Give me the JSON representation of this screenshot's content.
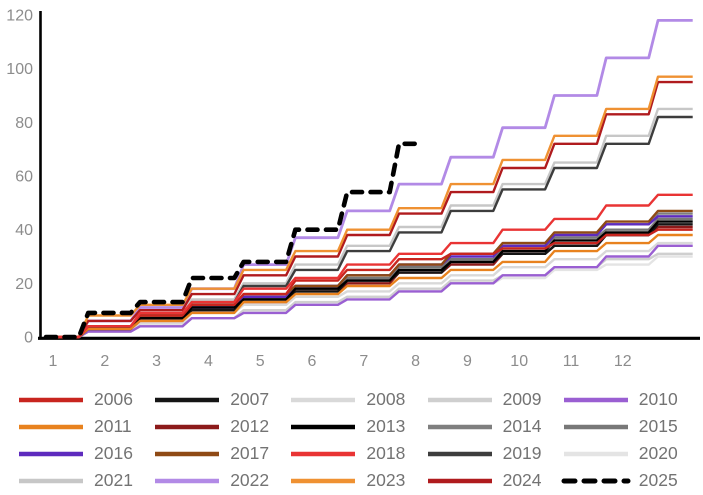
{
  "chart_data": {
    "type": "line",
    "subtype": "cumulative-step-by-month",
    "title": "",
    "xlabel": "",
    "ylabel": "",
    "x_tick_labels": [
      "1",
      "2",
      "3",
      "4",
      "5",
      "6",
      "7",
      "8",
      "9",
      "10",
      "11",
      "12"
    ],
    "y_ticks": [
      0,
      20,
      40,
      60,
      80,
      100,
      120
    ],
    "ylim": [
      0,
      120
    ],
    "xlim_months": [
      1,
      13.4
    ],
    "grid": "off",
    "legend_position": "bottom",
    "axis_color": "#000000",
    "tick_label_color": "#8c8c8c",
    "series": [
      {
        "name": "2006",
        "color": "#c8251f",
        "dash": false,
        "monthly_cumulative": [
          4,
          8,
          12,
          16,
          21,
          25,
          29,
          31,
          33,
          35,
          38,
          40
        ]
      },
      {
        "name": "2007",
        "color": "#151515",
        "dash": false,
        "monthly_cumulative": [
          3,
          7,
          10,
          14,
          17,
          21,
          24,
          28,
          31,
          34,
          38,
          42
        ]
      },
      {
        "name": "2008",
        "color": "#d9d9d9",
        "dash": false,
        "monthly_cumulative": [
          2,
          5,
          9,
          12,
          15,
          17,
          20,
          23,
          26,
          29,
          32,
          35
        ]
      },
      {
        "name": "2009",
        "color": "#cfcfcf",
        "dash": false,
        "monthly_cumulative": [
          2,
          4,
          7,
          10,
          13,
          15,
          18,
          21,
          23,
          26,
          29,
          31
        ]
      },
      {
        "name": "2010",
        "color": "#9a5fd2",
        "dash": false,
        "monthly_cumulative": [
          2,
          4,
          7,
          9,
          12,
          14,
          17,
          20,
          23,
          26,
          30,
          34
        ]
      },
      {
        "name": "2011",
        "color": "#e8821e",
        "dash": false,
        "monthly_cumulative": [
          3,
          6,
          9,
          13,
          16,
          19,
          22,
          25,
          28,
          32,
          35,
          38
        ]
      },
      {
        "name": "2012",
        "color": "#8c1a1a",
        "dash": false,
        "monthly_cumulative": [
          3,
          6,
          10,
          13,
          17,
          20,
          24,
          27,
          31,
          34,
          38,
          41
        ]
      },
      {
        "name": "2013",
        "color": "#000000",
        "dash": false,
        "monthly_cumulative": [
          3,
          7,
          11,
          14,
          18,
          21,
          25,
          28,
          32,
          36,
          39,
          43
        ]
      },
      {
        "name": "2014",
        "color": "#7f7f7f",
        "dash": false,
        "monthly_cumulative": [
          4,
          8,
          11,
          15,
          19,
          23,
          27,
          31,
          35,
          38,
          42,
          46
        ]
      },
      {
        "name": "2015",
        "color": "#787878",
        "dash": false,
        "monthly_cumulative": [
          3,
          7,
          11,
          14,
          18,
          22,
          26,
          29,
          33,
          37,
          40,
          44
        ]
      },
      {
        "name": "2016",
        "color": "#5e2bbe",
        "dash": false,
        "monthly_cumulative": [
          3,
          7,
          11,
          15,
          19,
          23,
          27,
          30,
          34,
          38,
          42,
          45
        ]
      },
      {
        "name": "2017",
        "color": "#8f4a15",
        "dash": false,
        "monthly_cumulative": [
          4,
          8,
          12,
          16,
          19,
          23,
          27,
          31,
          35,
          39,
          43,
          47
        ]
      },
      {
        "name": "2018",
        "color": "#e93434",
        "dash": false,
        "monthly_cumulative": [
          4,
          9,
          13,
          18,
          22,
          27,
          31,
          35,
          40,
          44,
          49,
          53
        ]
      },
      {
        "name": "2019",
        "color": "#3d3d3d",
        "dash": false,
        "monthly_cumulative": [
          4,
          8,
          13,
          19,
          25,
          32,
          39,
          47,
          55,
          63,
          72,
          82
        ]
      },
      {
        "name": "2020",
        "color": "#e4e4e4",
        "dash": false,
        "monthly_cumulative": [
          2,
          4,
          7,
          9,
          12,
          15,
          17,
          20,
          22,
          25,
          27,
          30
        ]
      },
      {
        "name": "2021",
        "color": "#c7c7c7",
        "dash": false,
        "monthly_cumulative": [
          4,
          8,
          14,
          20,
          27,
          34,
          41,
          49,
          57,
          65,
          75,
          85
        ]
      },
      {
        "name": "2022",
        "color": "#b28ae6",
        "dash": false,
        "monthly_cumulative": [
          6,
          11,
          18,
          27,
          37,
          47,
          57,
          67,
          78,
          90,
          104,
          118
        ]
      },
      {
        "name": "2023",
        "color": "#ef9132",
        "dash": false,
        "monthly_cumulative": [
          8,
          12,
          18,
          25,
          32,
          40,
          48,
          57,
          66,
          75,
          85,
          97
        ]
      },
      {
        "name": "2024",
        "color": "#b01b1e",
        "dash": false,
        "monthly_cumulative": [
          6,
          10,
          16,
          23,
          30,
          38,
          46,
          54,
          63,
          72,
          83,
          95
        ]
      },
      {
        "name": "2025",
        "color": "#000000",
        "dash": true,
        "monthly_cumulative": [
          9,
          13,
          22,
          28,
          40,
          54,
          72
        ]
      }
    ],
    "draw_order": [
      "2020",
      "2009",
      "2008",
      "2021",
      "2015",
      "2014",
      "2019",
      "2010",
      "2016",
      "2022",
      "2012",
      "2017",
      "2007",
      "2013",
      "2011",
      "2006",
      "2024",
      "2023",
      "2018",
      "2025"
    ],
    "year_end_totals": {
      "2006": 40,
      "2007": 42,
      "2008": 35,
      "2009": 31,
      "2010": 34,
      "2011": 38,
      "2012": 41,
      "2013": 43,
      "2014": 46,
      "2015": 44,
      "2016": 45,
      "2017": 47,
      "2018": 53,
      "2019": 82,
      "2020": 30,
      "2021": 85,
      "2022": 118,
      "2023": 97,
      "2024": 95,
      "2025_through_july": 72
    }
  },
  "legend": {
    "label_color": "#737373"
  }
}
